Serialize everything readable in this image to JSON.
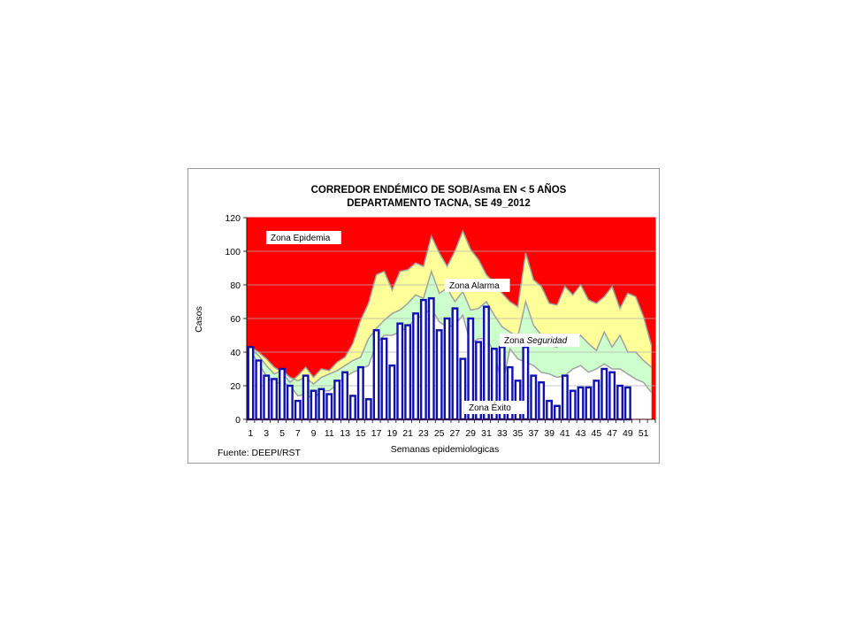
{
  "chart_data": {
    "type": "bar",
    "title": [
      "CORREDOR ENDÉMICO DE SOB/Asma EN < 5 AÑOS",
      "DEPARTAMENTO TACNA,  SE  49_2012"
    ],
    "xlabel": "Semanas epidemiologicas",
    "ylabel": "Casos",
    "ylim": [
      0,
      120
    ],
    "yticks": [
      0,
      20,
      40,
      60,
      80,
      100,
      120
    ],
    "x": [
      1,
      2,
      3,
      4,
      5,
      6,
      7,
      8,
      9,
      10,
      11,
      12,
      13,
      14,
      15,
      16,
      17,
      18,
      19,
      20,
      21,
      22,
      23,
      24,
      25,
      26,
      27,
      28,
      29,
      30,
      31,
      32,
      33,
      34,
      35,
      36,
      37,
      38,
      39,
      40,
      41,
      42,
      43,
      44,
      45,
      46,
      47,
      48,
      49,
      50,
      51,
      52
    ],
    "xtick_labels": [
      "1",
      "3",
      "5",
      "7",
      "9",
      "11",
      "13",
      "15",
      "17",
      "19",
      "21",
      "23",
      "25",
      "27",
      "29",
      "31",
      "33",
      "35",
      "37",
      "39",
      "41",
      "43",
      "45",
      "47",
      "49",
      "51"
    ],
    "grid": true,
    "source": "Fuente: DEEPI/RST",
    "colors": {
      "epidemia": "#ff0000",
      "alarma": "#ffff99",
      "seguridad": "#ccffcc",
      "exito": "#ffffff",
      "boundary_line": "#a0a0a0",
      "bar_outline": "#1010b0",
      "plot_border": "#ff0000"
    },
    "zone_labels": {
      "epidemia": "Zona Epidemia",
      "alarma": "Zona Alarma",
      "seguridad": "Zona Seguridad",
      "exito": "Zona Éxito"
    },
    "bars_2012": [
      43,
      35,
      26,
      24,
      30,
      20,
      11,
      26,
      17,
      18,
      15,
      23,
      28,
      14,
      31,
      12,
      53,
      48,
      32,
      57,
      56,
      63,
      71,
      72,
      53,
      60,
      66,
      36,
      60,
      46,
      67,
      42,
      43,
      31,
      23,
      43,
      26,
      22,
      11,
      8,
      26,
      17,
      19,
      19,
      23,
      30,
      28,
      20,
      19
    ],
    "zones": {
      "exito_upper": [
        41,
        33,
        26,
        21,
        22,
        20,
        14,
        15,
        12,
        17,
        17,
        21,
        25,
        28,
        30,
        32,
        45,
        50,
        50,
        52,
        55,
        60,
        62,
        66,
        58,
        55,
        56,
        62,
        45,
        48,
        48,
        40,
        20,
        42,
        36,
        34,
        32,
        28,
        27,
        25,
        26,
        30,
        32,
        28,
        30,
        33,
        30,
        30,
        27,
        24,
        22,
        16
      ],
      "seguridad_upper": [
        42,
        38,
        32,
        27,
        29,
        25,
        23,
        25,
        21,
        25,
        27,
        29,
        32,
        35,
        37,
        48,
        54,
        59,
        63,
        65,
        69,
        74,
        72,
        88,
        75,
        78,
        70,
        76,
        65,
        66,
        70,
        62,
        55,
        52,
        49,
        70,
        56,
        50,
        44,
        43,
        50,
        44,
        50,
        45,
        41,
        52,
        43,
        50,
        40,
        40,
        35,
        31
      ],
      "alarma_upper": [
        43,
        40,
        36,
        31,
        28,
        22,
        26,
        31,
        25,
        30,
        29,
        34,
        37,
        45,
        59,
        69,
        86,
        88,
        77,
        88,
        89,
        93,
        91,
        109,
        99,
        91,
        100,
        112,
        101,
        95,
        86,
        81,
        75,
        70,
        67,
        99,
        83,
        79,
        69,
        68,
        79,
        74,
        80,
        71,
        69,
        73,
        79,
        66,
        75,
        73,
        61,
        44
      ],
      "epidemia_upper": [
        120,
        120,
        120,
        120,
        120,
        120,
        120,
        120,
        120,
        120,
        120,
        120,
        120,
        120,
        120,
        120,
        120,
        120,
        120,
        120,
        120,
        120,
        120,
        120,
        120,
        120,
        120,
        120,
        120,
        120,
        120,
        120,
        120,
        120,
        120,
        120,
        120,
        120,
        120,
        120,
        120,
        120,
        120,
        120,
        120,
        120,
        120,
        120,
        120,
        120,
        120,
        120
      ]
    }
  }
}
